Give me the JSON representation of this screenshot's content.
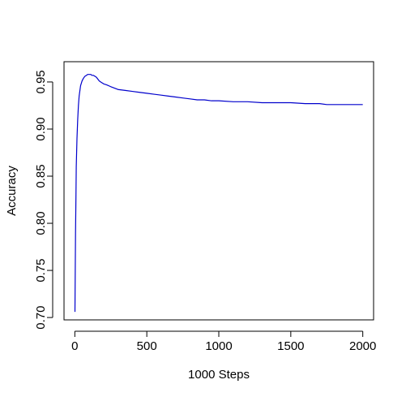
{
  "chart_data": {
    "type": "line",
    "title": "",
    "xlabel": "1000 Steps",
    "ylabel": "Accuracy",
    "xlim": [
      -75,
      2075
    ],
    "ylim": [
      0.6975,
      0.9715
    ],
    "xticks": [
      0,
      500,
      1000,
      1500,
      2000
    ],
    "xtick_labels": [
      "0",
      "500",
      "1000",
      "1500",
      "2000"
    ],
    "yticks": [
      0.7,
      0.75,
      0.8,
      0.85,
      0.9,
      0.95
    ],
    "ytick_labels": [
      "0.70",
      "0.75",
      "0.80",
      "0.85",
      "0.90",
      "0.95"
    ],
    "grid": false,
    "legend": "none",
    "series_color": "#0000cc",
    "series": [
      {
        "x": [
          1,
          3,
          5,
          8,
          10,
          15,
          20,
          25,
          30,
          40,
          50,
          60,
          70,
          80,
          90,
          100,
          110,
          120,
          130,
          140,
          150,
          160,
          170,
          180,
          200,
          220,
          250,
          300,
          350,
          400,
          450,
          500,
          550,
          600,
          650,
          700,
          750,
          800,
          850,
          900,
          950,
          1000,
          1100,
          1200,
          1300,
          1400,
          1500,
          1600,
          1700,
          1750,
          1800,
          1850,
          1900,
          1950,
          2000
        ],
        "y": [
          0.706,
          0.75,
          0.79,
          0.83,
          0.86,
          0.89,
          0.91,
          0.925,
          0.935,
          0.946,
          0.951,
          0.954,
          0.956,
          0.957,
          0.958,
          0.958,
          0.958,
          0.957,
          0.957,
          0.956,
          0.955,
          0.953,
          0.951,
          0.95,
          0.948,
          0.947,
          0.945,
          0.942,
          0.941,
          0.94,
          0.939,
          0.938,
          0.937,
          0.936,
          0.935,
          0.934,
          0.933,
          0.932,
          0.931,
          0.931,
          0.93,
          0.93,
          0.929,
          0.929,
          0.928,
          0.928,
          0.928,
          0.927,
          0.927,
          0.926,
          0.926,
          0.926,
          0.926,
          0.926,
          0.926
        ]
      }
    ]
  }
}
